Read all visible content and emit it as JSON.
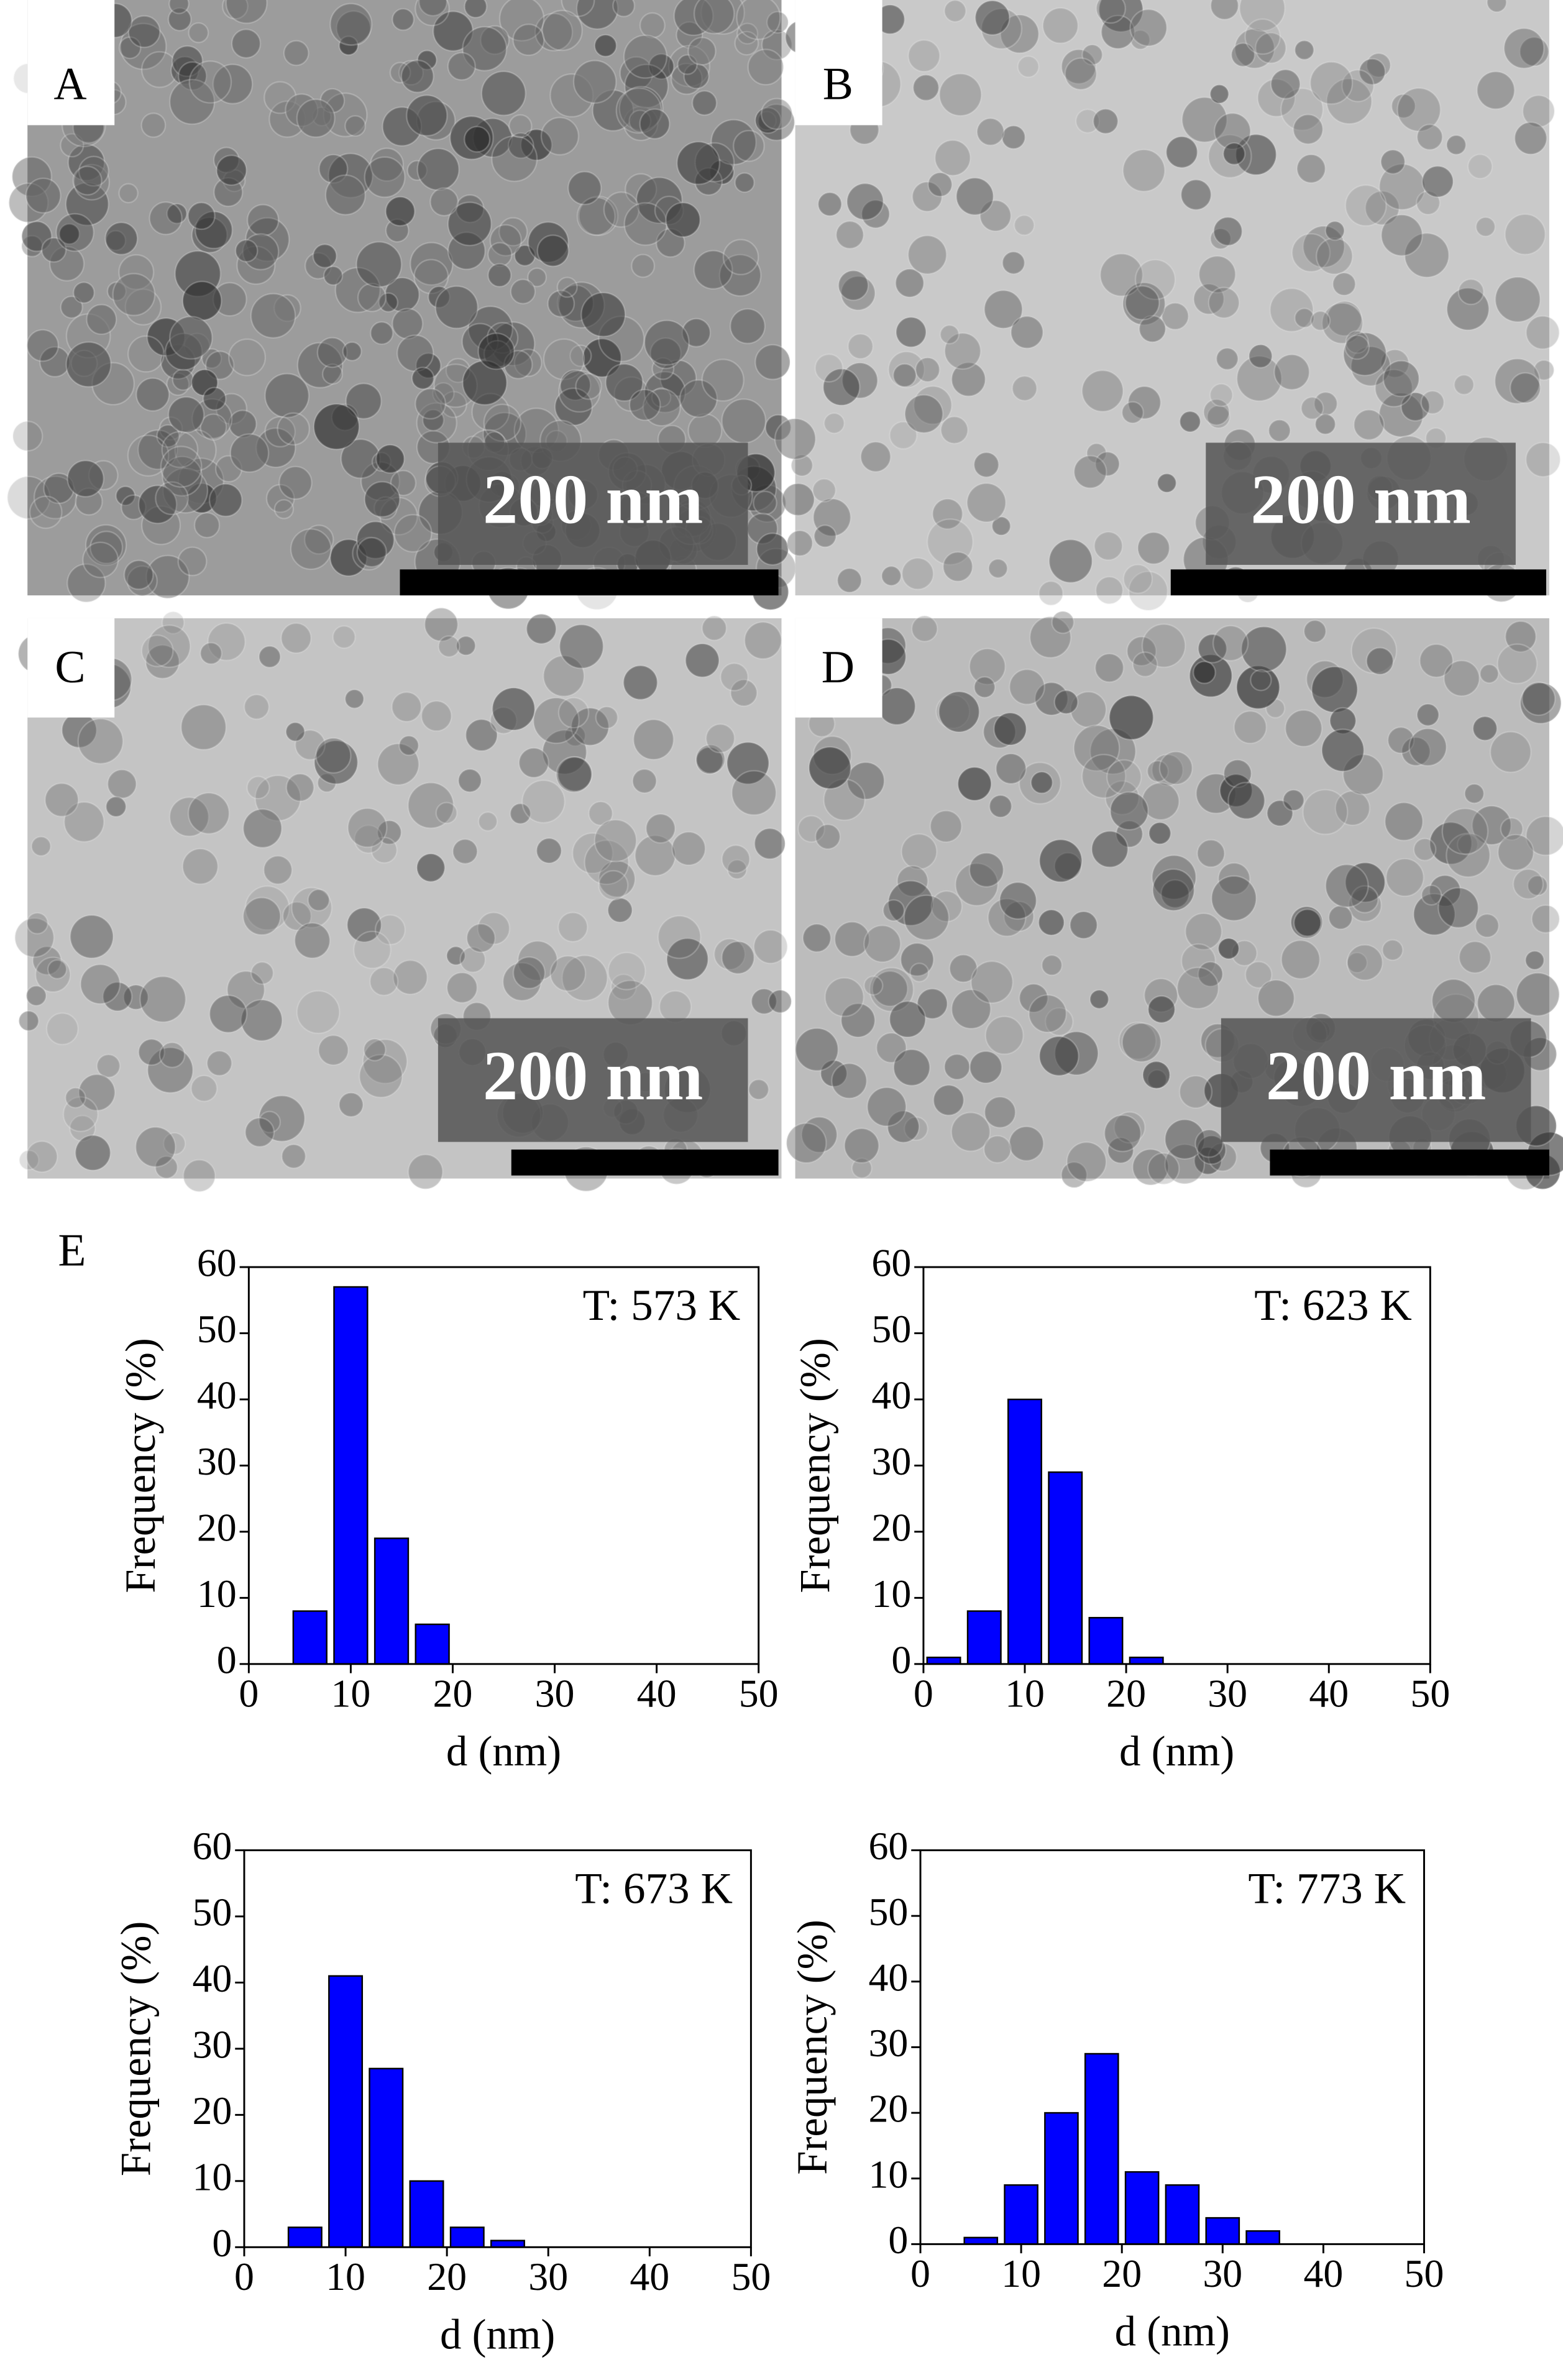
{
  "panels": [
    {
      "label": "A",
      "scale_bar": "200 nm"
    },
    {
      "label": "B",
      "scale_bar": "200 nm"
    },
    {
      "label": "C",
      "scale_bar": "200 nm"
    },
    {
      "label": "D",
      "scale_bar": "200 nm"
    }
  ],
  "panel_e_label": "E",
  "chart_data": [
    {
      "type": "histogram",
      "annotation": "T: 573 K",
      "xlabel": "d (nm)",
      "ylabel": "Frequency (%)",
      "color": "#0000ff",
      "bins": [
        4,
        8,
        12,
        16,
        20
      ],
      "values": [
        8,
        57,
        19,
        6
      ],
      "xlim": [
        0,
        50
      ],
      "ylim": [
        0,
        60
      ],
      "xticks": [
        0,
        10,
        20,
        30,
        40,
        50
      ],
      "yticks": [
        0,
        10,
        20,
        30,
        40,
        50,
        60
      ]
    },
    {
      "type": "histogram",
      "annotation": "T: 623 K",
      "xlabel": "d (nm)",
      "ylabel": "Frequency (%)",
      "color": "#0000ff",
      "bins": [
        0,
        4,
        8,
        12,
        16,
        20,
        24
      ],
      "values": [
        1,
        8,
        40,
        29,
        7,
        1
      ],
      "xlim": [
        0,
        50
      ],
      "ylim": [
        0,
        60
      ],
      "xticks": [
        0,
        10,
        20,
        30,
        40,
        50
      ],
      "yticks": [
        0,
        10,
        20,
        30,
        40,
        50,
        60
      ]
    },
    {
      "type": "histogram",
      "annotation": "T: 673 K",
      "xlabel": "d (nm)",
      "ylabel": "Frequency (%)",
      "color": "#0000ff",
      "bins": [
        4,
        8,
        12,
        16,
        20,
        24,
        28
      ],
      "values": [
        3,
        41,
        27,
        10,
        3,
        1
      ],
      "xlim": [
        0,
        50
      ],
      "ylim": [
        0,
        60
      ],
      "xticks": [
        0,
        10,
        20,
        30,
        40,
        50
      ],
      "yticks": [
        0,
        10,
        20,
        30,
        40,
        50,
        60
      ]
    },
    {
      "type": "histogram",
      "annotation": "T: 773 K",
      "xlabel": "d (nm)",
      "ylabel": "Frequency (%)",
      "color": "#0000ff",
      "bins": [
        4,
        8,
        12,
        16,
        20,
        24,
        28,
        32,
        36
      ],
      "values": [
        1,
        9,
        20,
        29,
        11,
        9,
        4,
        2
      ],
      "xlim": [
        0,
        50
      ],
      "ylim": [
        0,
        60
      ],
      "xticks": [
        0,
        10,
        20,
        30,
        40,
        50
      ],
      "yticks": [
        0,
        10,
        20,
        30,
        40,
        50,
        60
      ]
    }
  ]
}
